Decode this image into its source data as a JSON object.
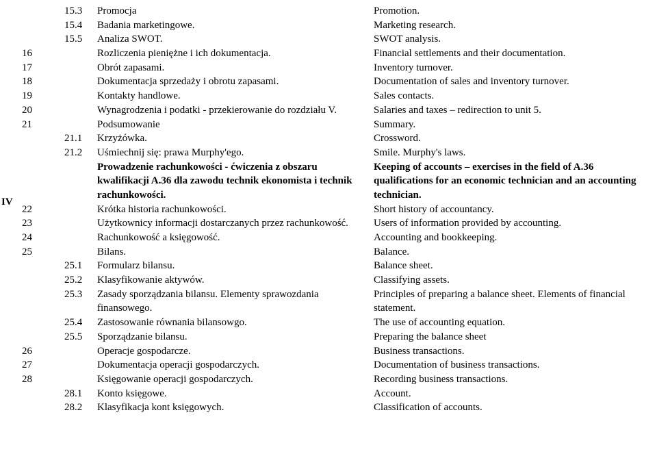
{
  "font": {
    "family": "Times New Roman",
    "size_pt": 12,
    "color": "#000000"
  },
  "background_color": "#ffffff",
  "roman_marker": "IV",
  "rows": [
    {
      "num": "",
      "sub": "15.3",
      "pl": "Promocja",
      "en": "Promotion.",
      "bold": false
    },
    {
      "num": "",
      "sub": "15.4",
      "pl": "Badania marketingowe.",
      "en": "Marketing research.",
      "bold": false
    },
    {
      "num": "",
      "sub": "15.5",
      "pl": "Analiza SWOT.",
      "en": "SWOT analysis.",
      "bold": false
    },
    {
      "num": "16",
      "sub": "",
      "pl": "Rozliczenia pieniężne i ich dokumentacja.",
      "en": "Financial settlements and their documentation.",
      "bold": false
    },
    {
      "num": "17",
      "sub": "",
      "pl": "Obrót zapasami.",
      "en": "Inventory turnover.",
      "bold": false
    },
    {
      "num": "18",
      "sub": "",
      "pl": "Dokumentacja sprzedaży i obrotu zapasami.",
      "en": "Documentation of sales and inventory turnover.",
      "bold": false
    },
    {
      "num": "19",
      "sub": "",
      "pl": "Kontakty handlowe.",
      "en": "Sales contacts.",
      "bold": false
    },
    {
      "num": "20",
      "sub": "",
      "pl": "Wynagrodzenia i podatki - przekierowanie do rozdziału V.",
      "en": "Salaries and taxes – redirection to unit 5.",
      "bold": false
    },
    {
      "num": "21",
      "sub": "",
      "pl": "Podsumowanie",
      "en": "Summary.",
      "bold": false
    },
    {
      "num": "",
      "sub": "21.1",
      "pl": "Krzyżówka.",
      "en": "Crossword.",
      "bold": false
    },
    {
      "num": "",
      "sub": "21.2",
      "pl": "Uśmiechnij się: prawa Murphy'ego.",
      "en": "Smile. Murphy's laws.",
      "bold": false
    },
    {
      "num": "",
      "sub": "",
      "pl": "Prowadzenie rachunkowości - ćwiczenia z obszaru kwalifikacji A.36 dla zawodu technik ekonomista i technik rachunkowości.",
      "en": "Keeping of accounts – exercises in the field of A.36 qualifications for an economic technician and an accounting technician.",
      "bold": true
    },
    {
      "num": "22",
      "sub": "",
      "pl": "Krótka historia rachunkowości.",
      "en": "Short history of accountancy.",
      "bold": false
    },
    {
      "num": "23",
      "sub": "",
      "pl": "Użytkownicy informacji dostarczanych przez rachunkowość.",
      "en": "Users of information provided by accounting.",
      "bold": false
    },
    {
      "num": "24",
      "sub": "",
      "pl": "Rachunkowość a księgowość.",
      "en": "Accounting and bookkeeping.",
      "bold": false
    },
    {
      "num": "25",
      "sub": "",
      "pl": "Bilans.",
      "en": "Balance.",
      "bold": false
    },
    {
      "num": "",
      "sub": "25.1",
      "pl": "Formularz bilansu.",
      "en": "Balance sheet.",
      "bold": false
    },
    {
      "num": "",
      "sub": "25.2",
      "pl": "Klasyfikowanie aktywów.",
      "en": "Classifying assets.",
      "bold": false
    },
    {
      "num": "",
      "sub": "25.3",
      "pl": "Zasady sporządzania bilansu. Elementy sprawozdania finansowego.",
      "en": "Principles of preparing a balance sheet. Elements of financial statement.",
      "bold": false
    },
    {
      "num": "",
      "sub": "25.4",
      "pl": "Zastosowanie równania bilansowgo.",
      "en": "The use of accounting equation.",
      "bold": false
    },
    {
      "num": "",
      "sub": "25.5",
      "pl": "Sporządzanie bilansu.",
      "en": "Preparing the balance sheet",
      "bold": false
    },
    {
      "num": "26",
      "sub": "",
      "pl": "Operacje gospodarcze.",
      "en": "Business transactions.",
      "bold": false
    },
    {
      "num": "27",
      "sub": "",
      "pl": "Dokumentacja operacji gospodarczych.",
      "en": "Documentation of business transactions.",
      "bold": false
    },
    {
      "num": "28",
      "sub": "",
      "pl": "Księgowanie operacji gospodarczych.",
      "en": "Recording business transactions.",
      "bold": false
    },
    {
      "num": "",
      "sub": "28.1",
      "pl": "Konto księgowe.",
      "en": "Account.",
      "bold": false
    },
    {
      "num": "",
      "sub": "28.2",
      "pl": "Klasyfikacja kont księgowych.",
      "en": "Classification of accounts.",
      "bold": false
    }
  ]
}
